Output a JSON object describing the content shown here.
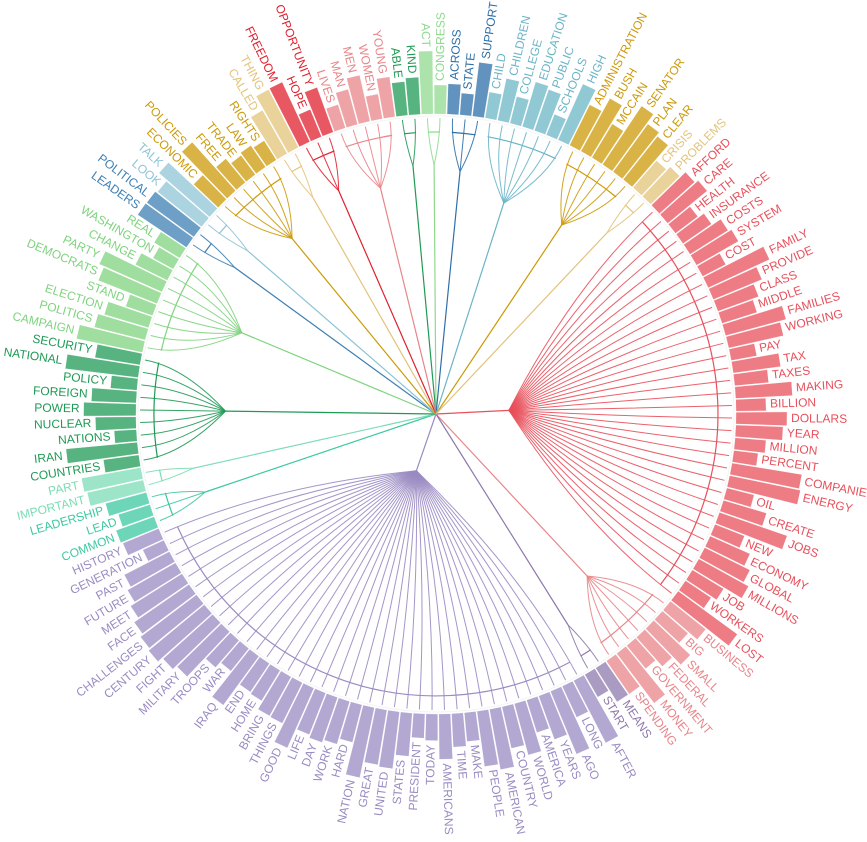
{
  "chart_data": {
    "type": "radial-dendrogram",
    "clusters": [
      {
        "color": "#e8505b",
        "words": [
          "AFFORD",
          "CARE",
          "HEALTH",
          "INSURANCE",
          "COSTS",
          "SYSTEM",
          "COST",
          "FAMILY",
          "PROVIDE",
          "CLASS",
          "MIDDLE",
          "FAMILIES",
          "WORKING",
          "PAY",
          "TAX",
          "TAXES",
          "MAKING",
          "BILLION",
          "DOLLARS",
          "YEAR",
          "MILLION",
          "PERCENT",
          "COMPANIES",
          "ENERGY",
          "OIL",
          "CREATE",
          "JOBS",
          "NEW",
          "ECONOMY",
          "GLOBAL",
          "MILLIONS",
          "JOB",
          "WORKERS",
          "LOST"
        ]
      },
      {
        "color": "#e8858a",
        "words": [
          "BUSINESS",
          "BIG",
          "SMALL",
          "FEDERAL",
          "GOVERNMENT",
          "MONEY",
          "SPENDING"
        ]
      },
      {
        "color": "#8e79ad",
        "words": [
          "MEANS",
          "START"
        ]
      },
      {
        "color": "#9a8bc2",
        "words": [
          "AFTER",
          "LONG",
          "AGO",
          "YEARS",
          "AMERICA",
          "WORLD",
          "COUNTRY",
          "AMERICAN",
          "PEOPLE",
          "MAKE",
          "TIME",
          "AMERICANS",
          "TODAY",
          "PRESIDENT",
          "STATES",
          "UNITED",
          "GREAT",
          "NATION",
          "HARD",
          "WORK",
          "DAY",
          "LIFE",
          "GOOD",
          "THINGS",
          "BRING",
          "HOME",
          "END",
          "IRAQ",
          "WAR",
          "TROOPS",
          "MILITARY",
          "FIGHT",
          "CENTURY",
          "CHALLENGES",
          "FACE",
          "MEET",
          "FUTURE",
          "PAST",
          "GENERATION",
          "HISTORY"
        ]
      },
      {
        "color": "#3cc8a0",
        "words": [
          "COMMON",
          "LEAD",
          "LEADERSHIP"
        ]
      },
      {
        "color": "#7bdcb5",
        "words": [
          "IMPORTANT",
          "PART"
        ]
      },
      {
        "color": "#1f9a55",
        "words": [
          "COUNTRIES",
          "IRAN",
          "NATIONS",
          "NUCLEAR",
          "POWER",
          "FOREIGN",
          "POLICY",
          "NATIONAL",
          "SECURITY"
        ]
      },
      {
        "color": "#7fd37f",
        "words": [
          "CAMPAIGN",
          "POLITICS",
          "ELECTION",
          "STAND",
          "DEMOCRATS",
          "PARTY",
          "CHANGE",
          "WASHINGTON",
          "REAL"
        ]
      },
      {
        "color": "#3d7fb3",
        "words": [
          "LEADERS",
          "POLITICAL"
        ]
      },
      {
        "color": "#8fc4d6",
        "words": [
          "LOOK",
          "TALK"
        ]
      },
      {
        "color": "#cc9a08",
        "words": [
          "ECONOMIC",
          "POLICIES",
          "FREE",
          "TRADE",
          "LAW",
          "RIGHTS"
        ]
      },
      {
        "color": "#e3c37a",
        "words": [
          "CALLED",
          "THING"
        ]
      },
      {
        "color": "#e0202e",
        "words": [
          "FREEDOM",
          "HOPE",
          "OPPORTUNITY"
        ]
      },
      {
        "color": "#e8858a",
        "words": [
          "LIVES",
          "MAN",
          "MEN",
          "WOMEN",
          "YOUNG"
        ]
      },
      {
        "color": "#1f9a55",
        "words": [
          "ABLE",
          "KIND"
        ]
      },
      {
        "color": "#8fd98f",
        "words": [
          "ACT",
          "CONGRESS"
        ]
      },
      {
        "color": "#2e6fa8",
        "words": [
          "ACROSS",
          "STATE",
          "SUPPORT"
        ]
      },
      {
        "color": "#6bb5c6",
        "words": [
          "CHILD",
          "CHILDREN",
          "COLLEGE",
          "EDUCATION",
          "PUBLIC",
          "SCHOOLS",
          "HIGH"
        ]
      },
      {
        "color": "#cc9a08",
        "words": [
          "ADMINISTRATION",
          "BUSH",
          "MCCAIN",
          "SENATOR",
          "PLAN",
          "CLEAR"
        ]
      },
      {
        "color": "#e3c37a",
        "words": [
          "CRISIS",
          "PROBLEMS"
        ]
      }
    ]
  }
}
